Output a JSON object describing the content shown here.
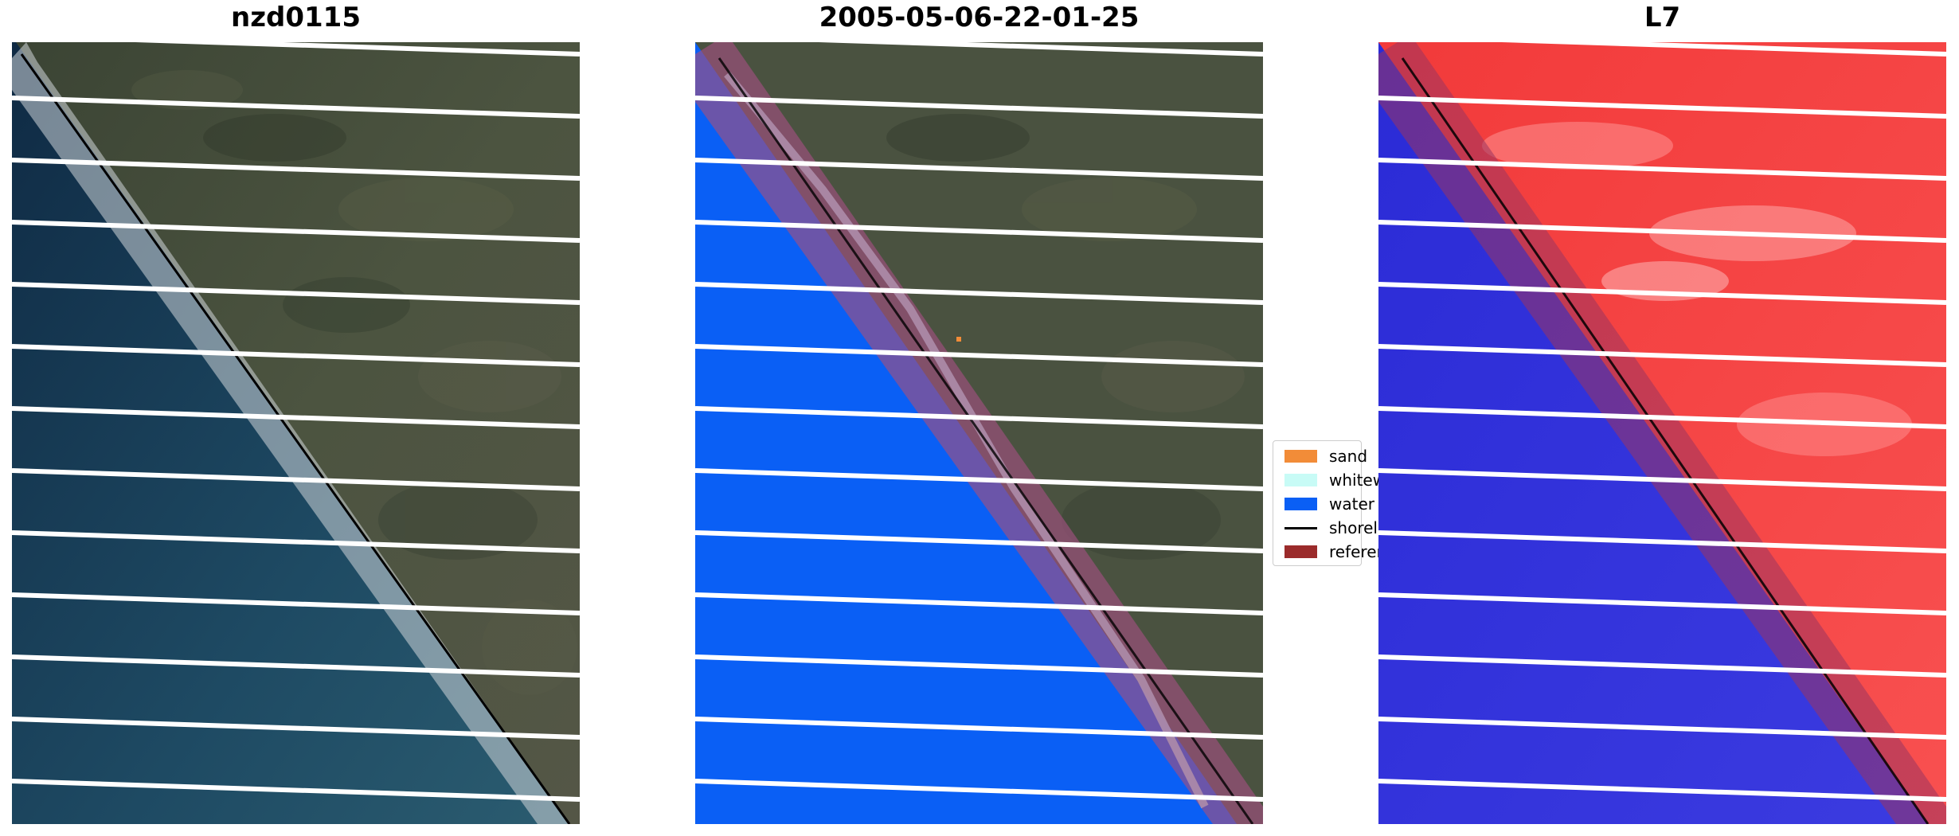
{
  "panels": [
    {
      "title": "nzd0115"
    },
    {
      "title": "2005-05-06-22-01-25"
    },
    {
      "title": "L7"
    }
  ],
  "legend": {
    "items": [
      {
        "label": "sand",
        "color": "#f28c38",
        "type": "patch"
      },
      {
        "label": "whitewater",
        "color": "#c8fbf6",
        "type": "patch"
      },
      {
        "label": "water",
        "color": "#0a5ff5",
        "type": "patch"
      },
      {
        "label": "shoreline",
        "color": "#000000",
        "type": "line"
      },
      {
        "label": "reference shoreline buffer",
        "color": "#9b2b2b",
        "type": "patch"
      }
    ]
  },
  "colors": {
    "ocean": "#1a3a52",
    "land": "#4b5341",
    "water_class": "#0a5ff5",
    "buffer": "#a05080",
    "ndwi_water": "#2b2bd6",
    "ndwi_land": "#f23a3a"
  }
}
